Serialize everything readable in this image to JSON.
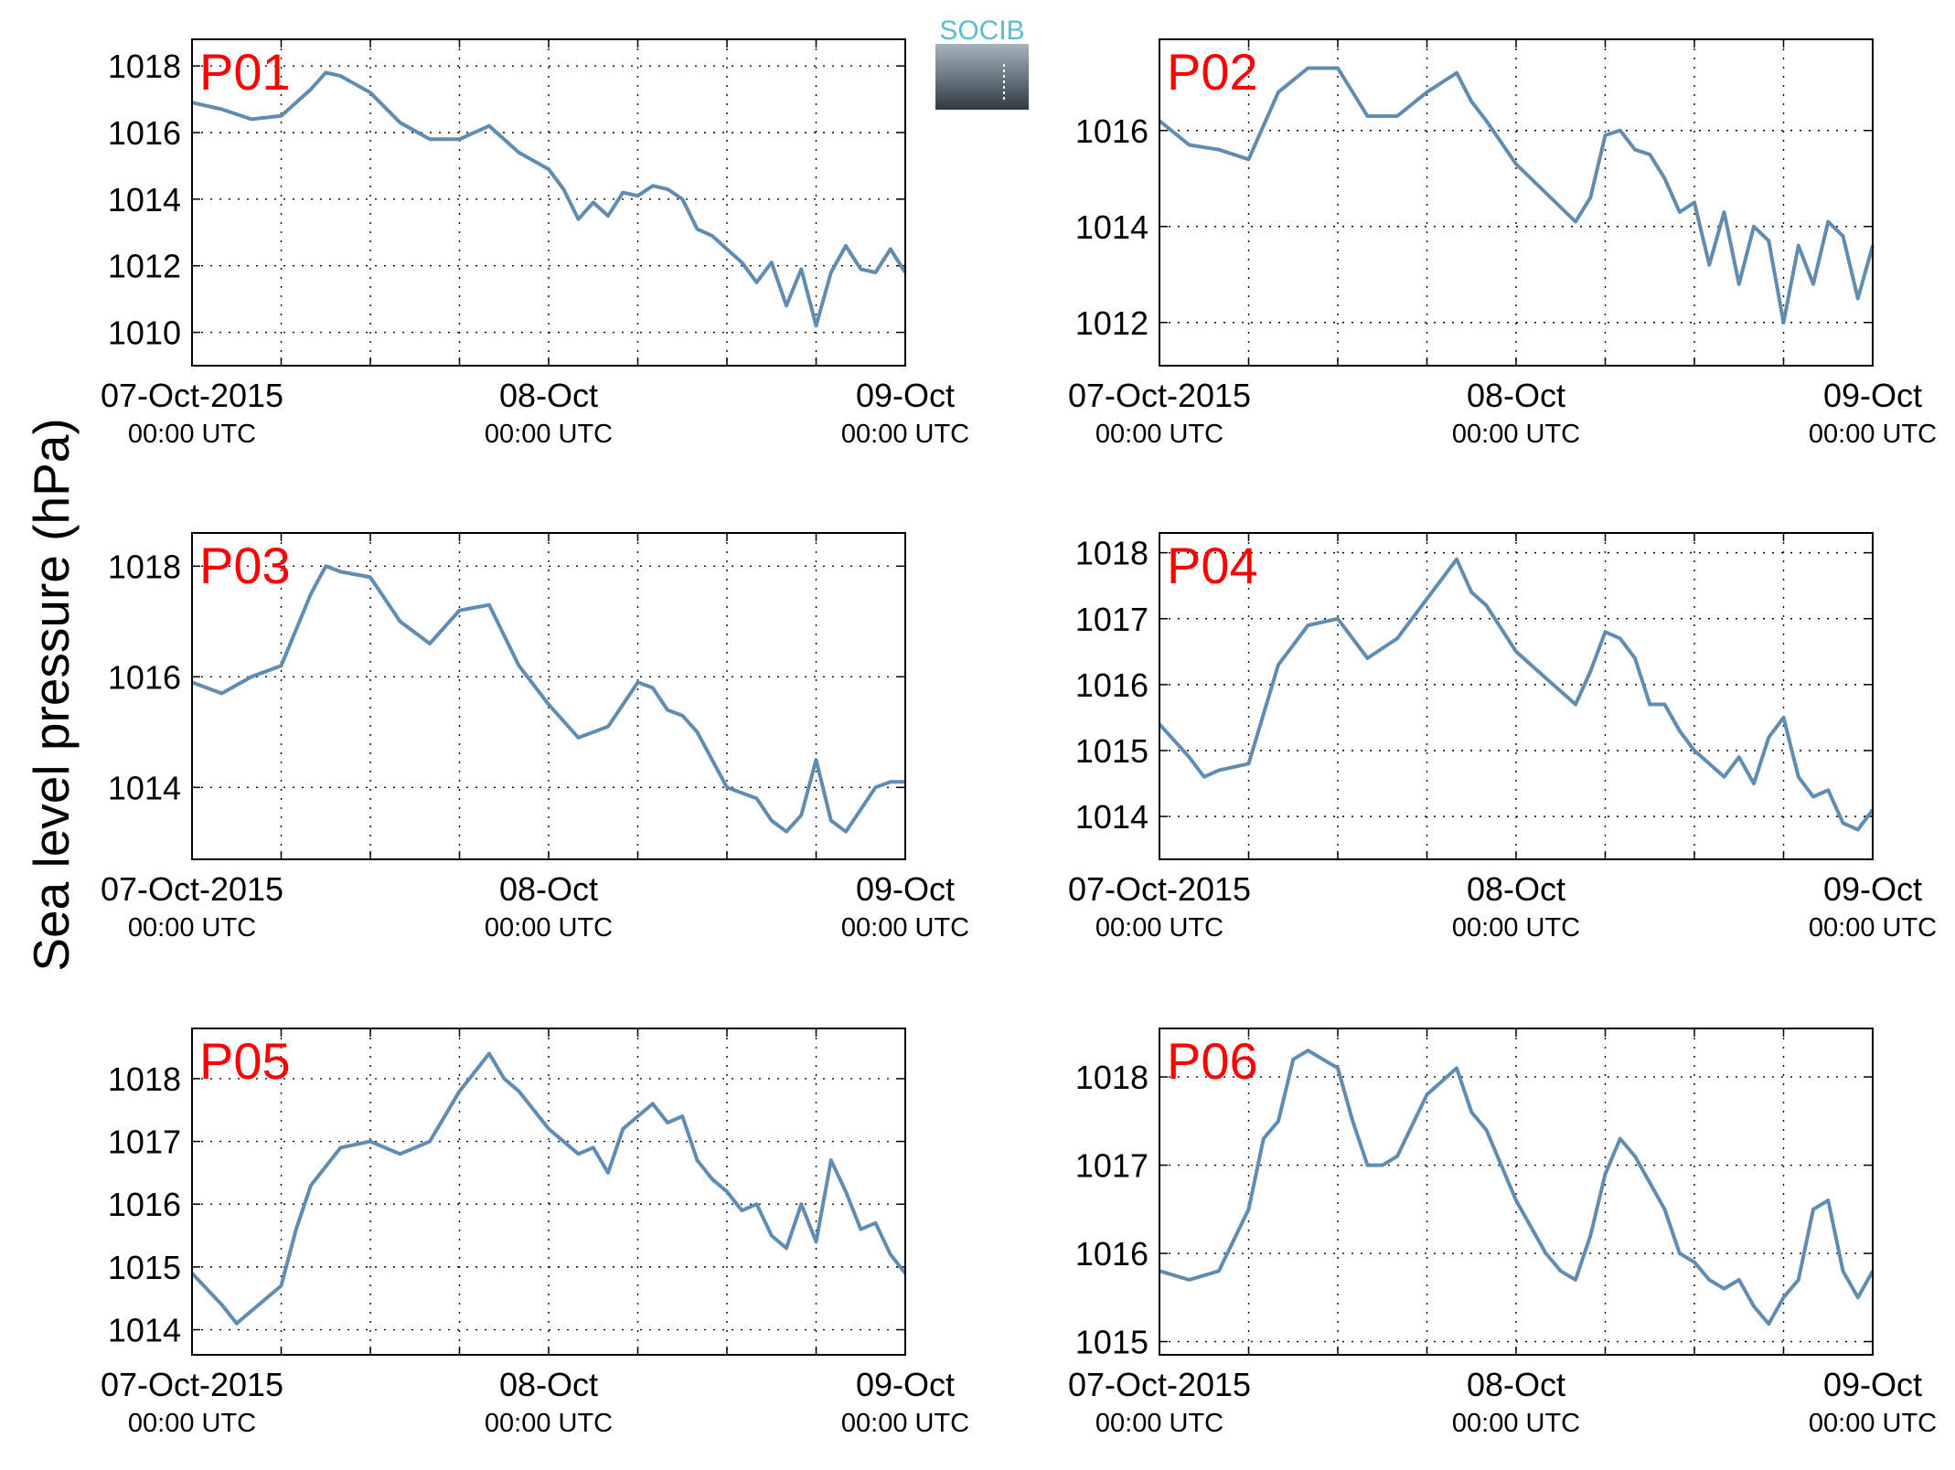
{
  "figure": {
    "ylabel": "Sea level pressure (hPa)",
    "line_color": "#5f8cb0",
    "label_color": "#ff0000",
    "logo": {
      "text": "SOCIB",
      "text_color": "#5bbccc",
      "gradient_top": "#a7b4bd",
      "gradient_bottom": "#2e3b45"
    }
  },
  "chart_data": [
    {
      "type": "line",
      "title": "P01",
      "grid": true,
      "x_range_hours": [
        0,
        48
      ],
      "x_ticks": [
        {
          "hour": 0,
          "date": "07-Oct-2015",
          "time": "00:00 UTC"
        },
        {
          "hour": 24,
          "date": "08-Oct",
          "time": "00:00 UTC"
        },
        {
          "hour": 48,
          "date": "09-Oct",
          "time": "00:00 UTC"
        }
      ],
      "ylim": [
        1009,
        1018.8
      ],
      "yticks": [
        1010,
        1012,
        1014,
        1016,
        1018
      ],
      "series": [
        {
          "x": [
            0,
            2,
            4,
            6,
            8,
            9,
            10,
            12,
            14,
            16,
            18,
            20,
            22,
            24,
            25,
            26,
            27,
            28,
            29,
            30,
            31,
            32,
            33,
            34,
            35,
            36,
            37,
            38,
            39,
            40,
            41,
            42,
            43,
            44,
            45,
            46,
            47,
            48
          ],
          "y": [
            1016.9,
            1016.7,
            1016.4,
            1016.5,
            1017.3,
            1017.8,
            1017.7,
            1017.2,
            1016.3,
            1015.8,
            1015.8,
            1016.2,
            1015.4,
            1014.9,
            1014.3,
            1013.4,
            1013.9,
            1013.5,
            1014.2,
            1014.1,
            1014.4,
            1014.3,
            1014.0,
            1013.1,
            1012.9,
            1012.5,
            1012.1,
            1011.5,
            1012.1,
            1010.8,
            1011.9,
            1010.2,
            1011.8,
            1012.6,
            1011.9,
            1011.8,
            1012.5,
            1011.8
          ]
        }
      ]
    },
    {
      "type": "line",
      "title": "P02",
      "grid": true,
      "x_range_hours": [
        0,
        48
      ],
      "x_ticks": [
        {
          "hour": 0,
          "date": "07-Oct-2015",
          "time": "00:00 UTC"
        },
        {
          "hour": 24,
          "date": "08-Oct",
          "time": "00:00 UTC"
        },
        {
          "hour": 48,
          "date": "09-Oct",
          "time": "00:00 UTC"
        }
      ],
      "ylim": [
        1011.1,
        1017.9
      ],
      "yticks": [
        1012,
        1014,
        1016
      ],
      "series": [
        {
          "x": [
            0,
            2,
            4,
            6,
            8,
            10,
            12,
            14,
            16,
            18,
            20,
            21,
            22,
            24,
            26,
            28,
            29,
            30,
            31,
            32,
            33,
            34,
            35,
            36,
            37,
            38,
            39,
            40,
            41,
            42,
            43,
            44,
            45,
            46,
            47,
            48
          ],
          "y": [
            1016.2,
            1015.7,
            1015.6,
            1015.4,
            1016.8,
            1017.3,
            1017.3,
            1016.3,
            1016.3,
            1016.8,
            1017.2,
            1016.6,
            1016.2,
            1015.3,
            1014.7,
            1014.1,
            1014.6,
            1015.9,
            1016.0,
            1015.6,
            1015.5,
            1015.0,
            1014.3,
            1014.5,
            1013.2,
            1014.3,
            1012.8,
            1014.0,
            1013.7,
            1012.0,
            1013.6,
            1012.8,
            1014.1,
            1013.8,
            1012.5,
            1013.6
          ]
        }
      ]
    },
    {
      "type": "line",
      "title": "P03",
      "grid": true,
      "x_range_hours": [
        0,
        48
      ],
      "x_ticks": [
        {
          "hour": 0,
          "date": "07-Oct-2015",
          "time": "00:00 UTC"
        },
        {
          "hour": 24,
          "date": "08-Oct",
          "time": "00:00 UTC"
        },
        {
          "hour": 48,
          "date": "09-Oct",
          "time": "00:00 UTC"
        }
      ],
      "ylim": [
        1012.7,
        1018.6
      ],
      "yticks": [
        1014,
        1016,
        1018
      ],
      "series": [
        {
          "x": [
            0,
            2,
            4,
            6,
            8,
            9,
            10,
            12,
            14,
            16,
            18,
            20,
            22,
            24,
            26,
            28,
            30,
            31,
            32,
            33,
            34,
            36,
            37,
            38,
            39,
            40,
            41,
            42,
            43,
            44,
            45,
            46,
            47,
            48
          ],
          "y": [
            1015.9,
            1015.7,
            1016.0,
            1016.2,
            1017.5,
            1018.0,
            1017.9,
            1017.8,
            1017.0,
            1016.6,
            1017.2,
            1017.3,
            1016.2,
            1015.5,
            1014.9,
            1015.1,
            1015.9,
            1015.8,
            1015.4,
            1015.3,
            1015.0,
            1014.0,
            1013.9,
            1013.8,
            1013.4,
            1013.2,
            1013.5,
            1014.5,
            1013.4,
            1013.2,
            1013.6,
            1014.0,
            1014.1,
            1014.1
          ]
        }
      ]
    },
    {
      "type": "line",
      "title": "P04",
      "grid": true,
      "x_range_hours": [
        0,
        48
      ],
      "x_ticks": [
        {
          "hour": 0,
          "date": "07-Oct-2015",
          "time": "00:00 UTC"
        },
        {
          "hour": 24,
          "date": "08-Oct",
          "time": "00:00 UTC"
        },
        {
          "hour": 48,
          "date": "09-Oct",
          "time": "00:00 UTC"
        }
      ],
      "ylim": [
        1013.35,
        1018.3
      ],
      "yticks": [
        1014,
        1015,
        1016,
        1017,
        1018
      ],
      "series": [
        {
          "x": [
            0,
            2,
            3,
            4,
            6,
            8,
            10,
            12,
            14,
            16,
            18,
            20,
            21,
            22,
            24,
            26,
            27,
            28,
            29,
            30,
            31,
            32,
            33,
            34,
            35,
            36,
            37,
            38,
            39,
            40,
            41,
            42,
            43,
            44,
            45,
            46,
            47,
            48
          ],
          "y": [
            1015.4,
            1014.9,
            1014.6,
            1014.7,
            1014.8,
            1016.3,
            1016.9,
            1017.0,
            1016.4,
            1016.7,
            1017.3,
            1017.9,
            1017.4,
            1017.2,
            1016.5,
            1016.1,
            1015.9,
            1015.7,
            1016.2,
            1016.8,
            1016.7,
            1016.4,
            1015.7,
            1015.7,
            1015.3,
            1015.0,
            1014.8,
            1014.6,
            1014.9,
            1014.5,
            1015.2,
            1015.5,
            1014.6,
            1014.3,
            1014.4,
            1013.9,
            1013.8,
            1014.1
          ]
        }
      ]
    },
    {
      "type": "line",
      "title": "P05",
      "grid": true,
      "x_range_hours": [
        0,
        48
      ],
      "x_ticks": [
        {
          "hour": 0,
          "date": "07-Oct-2015",
          "time": "00:00 UTC"
        },
        {
          "hour": 24,
          "date": "08-Oct",
          "time": "00:00 UTC"
        },
        {
          "hour": 48,
          "date": "09-Oct",
          "time": "00:00 UTC"
        }
      ],
      "ylim": [
        1013.6,
        1018.8
      ],
      "yticks": [
        1014,
        1015,
        1016,
        1017,
        1018
      ],
      "series": [
        {
          "x": [
            0,
            2,
            3,
            4,
            6,
            7,
            8,
            10,
            12,
            14,
            16,
            18,
            20,
            21,
            22,
            24,
            26,
            27,
            28,
            29,
            30,
            31,
            32,
            33,
            34,
            35,
            36,
            37,
            38,
            39,
            40,
            41,
            42,
            43,
            44,
            45,
            46,
            47,
            48
          ],
          "y": [
            1014.9,
            1014.4,
            1014.1,
            1014.3,
            1014.7,
            1015.6,
            1016.3,
            1016.9,
            1017.0,
            1016.8,
            1017.0,
            1017.8,
            1018.4,
            1018.0,
            1017.8,
            1017.2,
            1016.8,
            1016.9,
            1016.5,
            1017.2,
            1017.4,
            1017.6,
            1017.3,
            1017.4,
            1016.7,
            1016.4,
            1016.2,
            1015.9,
            1016.0,
            1015.5,
            1015.3,
            1016.0,
            1015.4,
            1016.7,
            1016.2,
            1015.6,
            1015.7,
            1015.2,
            1014.9
          ]
        }
      ]
    },
    {
      "type": "line",
      "title": "P06",
      "grid": true,
      "x_range_hours": [
        0,
        48
      ],
      "x_ticks": [
        {
          "hour": 0,
          "date": "07-Oct-2015",
          "time": "00:00 UTC"
        },
        {
          "hour": 24,
          "date": "08-Oct",
          "time": "00:00 UTC"
        },
        {
          "hour": 48,
          "date": "09-Oct",
          "time": "00:00 UTC"
        }
      ],
      "ylim": [
        1014.85,
        1018.55
      ],
      "yticks": [
        1015,
        1016,
        1017,
        1018
      ],
      "series": [
        {
          "x": [
            0,
            2,
            4,
            6,
            7,
            8,
            9,
            10,
            11,
            12,
            13,
            14,
            15,
            16,
            18,
            20,
            21,
            22,
            24,
            26,
            27,
            28,
            29,
            30,
            31,
            32,
            33,
            34,
            35,
            36,
            37,
            38,
            39,
            40,
            41,
            42,
            43,
            44,
            45,
            46,
            47,
            48
          ],
          "y": [
            1015.8,
            1015.7,
            1015.8,
            1016.5,
            1017.3,
            1017.5,
            1018.2,
            1018.3,
            1018.2,
            1018.1,
            1017.5,
            1017.0,
            1017.0,
            1017.1,
            1017.8,
            1018.1,
            1017.6,
            1017.4,
            1016.6,
            1016.0,
            1015.8,
            1015.7,
            1016.2,
            1016.9,
            1017.3,
            1017.1,
            1016.8,
            1016.5,
            1016.0,
            1015.9,
            1015.7,
            1015.6,
            1015.7,
            1015.4,
            1015.2,
            1015.5,
            1015.7,
            1016.5,
            1016.6,
            1015.8,
            1015.5,
            1015.8
          ]
        }
      ]
    }
  ]
}
